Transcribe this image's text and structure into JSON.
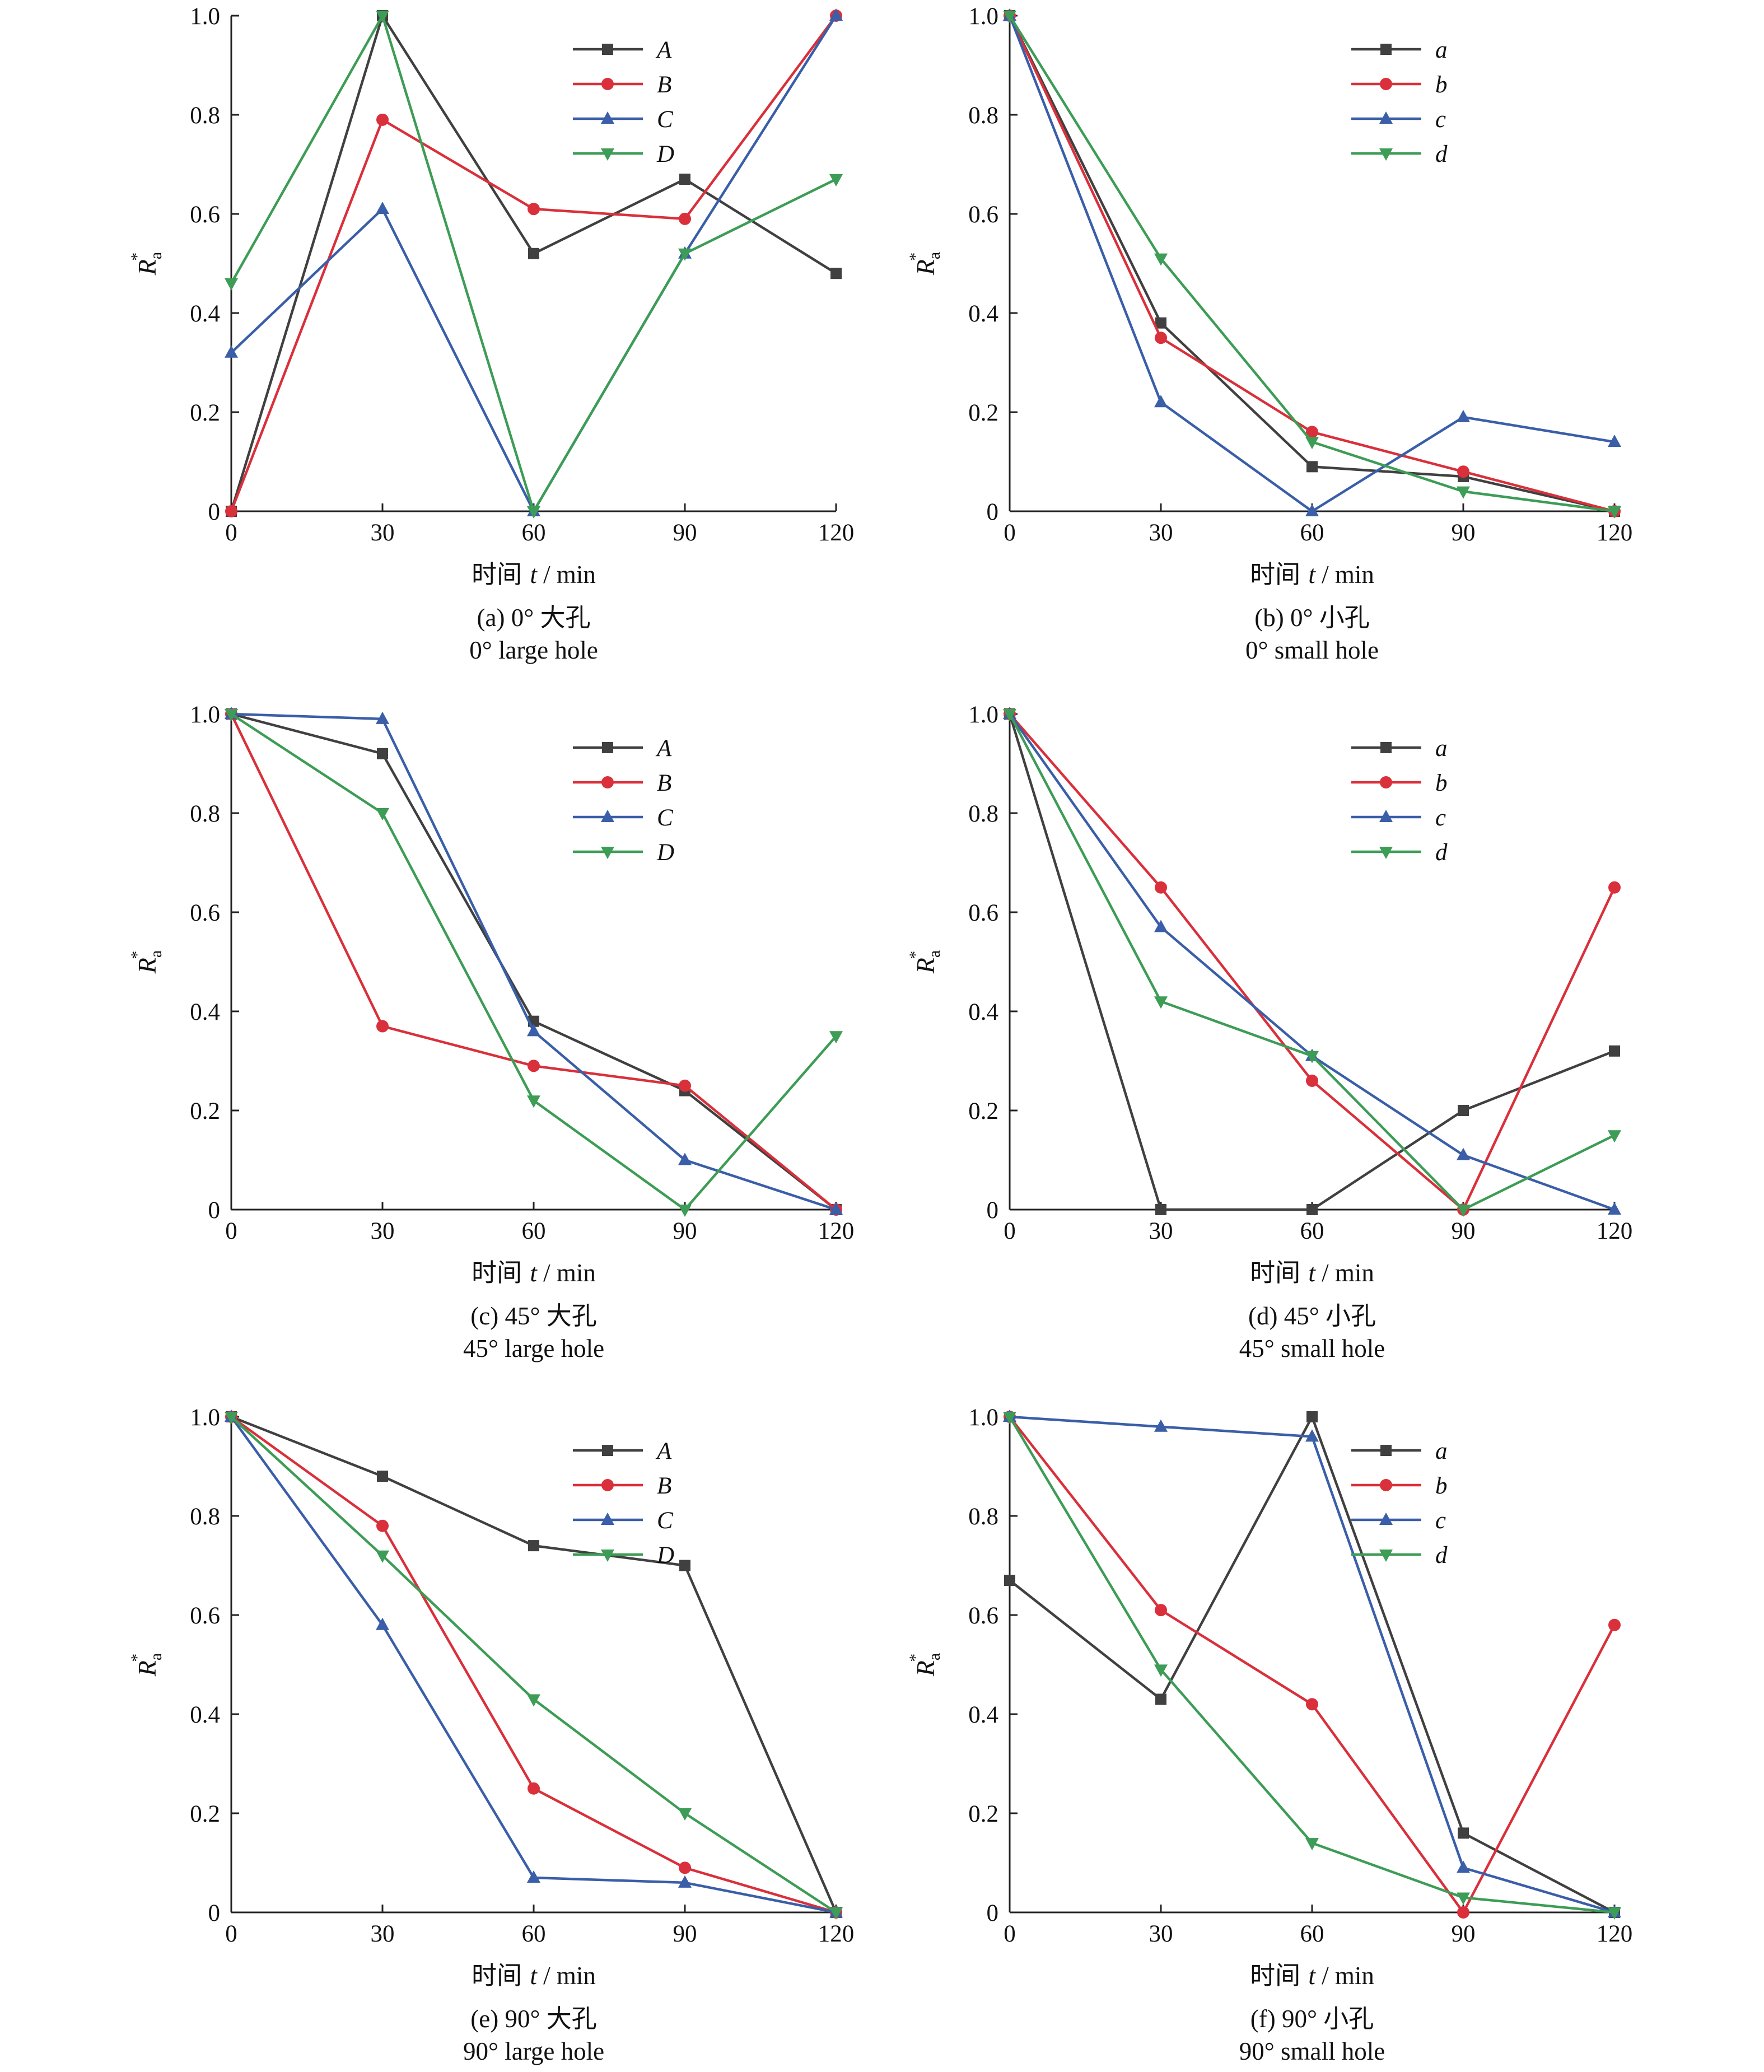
{
  "figure": {
    "colors": {
      "s0": "#404040",
      "s1": "#d9303b",
      "s2": "#3a5ea8",
      "s3": "#3d9c55"
    },
    "markers": [
      "square",
      "circle",
      "triangle-up",
      "triangle-down"
    ]
  },
  "chart_data": [
    {
      "type": "line",
      "panel": "a",
      "caption_cn": "(a) 0° 大孔",
      "caption_en": "0° large hole",
      "xlabel_cn": "时间 ",
      "xlabel_var": "t",
      "xlabel_unit": " / min",
      "ylabel_main": "R",
      "ylabel_sub": "a",
      "ylabel_sup": "*",
      "x": [
        0,
        30,
        60,
        90,
        120
      ],
      "xticks": [
        "0",
        "30",
        "60",
        "90",
        "120"
      ],
      "yticks": [
        "0",
        "0.2",
        "0.4",
        "0.6",
        "0.8",
        "1.0"
      ],
      "xlim": [
        0,
        120
      ],
      "ylim": [
        0,
        1
      ],
      "legend_position": "top-right",
      "series": [
        {
          "name": "A",
          "values": [
            0,
            1.0,
            0.52,
            0.67,
            0.48
          ]
        },
        {
          "name": "B",
          "values": [
            0,
            0.79,
            0.61,
            0.59,
            1.0
          ]
        },
        {
          "name": "C",
          "values": [
            0.32,
            0.61,
            0,
            0.52,
            1.0
          ]
        },
        {
          "name": "D",
          "values": [
            0.46,
            1.0,
            0,
            0.52,
            0.67
          ]
        }
      ]
    },
    {
      "type": "line",
      "panel": "b",
      "caption_cn": "(b) 0° 小孔",
      "caption_en": "0° small hole",
      "xlabel_cn": "时间 ",
      "xlabel_var": "t",
      "xlabel_unit": " / min",
      "ylabel_main": "R",
      "ylabel_sub": "a",
      "ylabel_sup": "*",
      "x": [
        0,
        30,
        60,
        90,
        120
      ],
      "xticks": [
        "0",
        "30",
        "60",
        "90",
        "120"
      ],
      "yticks": [
        "0",
        "0.2",
        "0.4",
        "0.6",
        "0.8",
        "1.0"
      ],
      "xlim": [
        0,
        120
      ],
      "ylim": [
        0,
        1
      ],
      "legend_position": "top-right",
      "series": [
        {
          "name": "a",
          "values": [
            1.0,
            0.38,
            0.09,
            0.07,
            0
          ]
        },
        {
          "name": "b",
          "values": [
            1.0,
            0.35,
            0.16,
            0.08,
            0
          ]
        },
        {
          "name": "c",
          "values": [
            1.0,
            0.22,
            0,
            0.19,
            0.14
          ]
        },
        {
          "name": "d",
          "values": [
            1.0,
            0.51,
            0.14,
            0.04,
            0
          ]
        }
      ]
    },
    {
      "type": "line",
      "panel": "c",
      "caption_cn": "(c) 45° 大孔",
      "caption_en": "45° large hole",
      "xlabel_cn": "时间 ",
      "xlabel_var": "t",
      "xlabel_unit": " / min",
      "ylabel_main": "R",
      "ylabel_sub": "a",
      "ylabel_sup": "*",
      "x": [
        0,
        30,
        60,
        90,
        120
      ],
      "xticks": [
        "0",
        "30",
        "60",
        "90",
        "120"
      ],
      "yticks": [
        "0",
        "0.2",
        "0.4",
        "0.6",
        "0.8",
        "1.0"
      ],
      "xlim": [
        0,
        120
      ],
      "ylim": [
        0,
        1
      ],
      "legend_position": "top-right",
      "series": [
        {
          "name": "A",
          "values": [
            1.0,
            0.92,
            0.38,
            0.24,
            0
          ]
        },
        {
          "name": "B",
          "values": [
            1.0,
            0.37,
            0.29,
            0.25,
            0
          ]
        },
        {
          "name": "C",
          "values": [
            1.0,
            0.99,
            0.36,
            0.1,
            0
          ]
        },
        {
          "name": "D",
          "values": [
            1.0,
            0.8,
            0.22,
            0,
            0.35
          ]
        }
      ]
    },
    {
      "type": "line",
      "panel": "d",
      "caption_cn": "(d) 45° 小孔",
      "caption_en": "45° small hole",
      "xlabel_cn": "时间 ",
      "xlabel_var": "t",
      "xlabel_unit": " / min",
      "ylabel_main": "R",
      "ylabel_sub": "a",
      "ylabel_sup": "*",
      "x": [
        0,
        30,
        60,
        90,
        120
      ],
      "xticks": [
        "0",
        "30",
        "60",
        "90",
        "120"
      ],
      "yticks": [
        "0",
        "0.2",
        "0.4",
        "0.6",
        "0.8",
        "1.0"
      ],
      "xlim": [
        0,
        120
      ],
      "ylim": [
        0,
        1
      ],
      "legend_position": "top-right",
      "series": [
        {
          "name": "a",
          "values": [
            1.0,
            0,
            0,
            0.2,
            0.32
          ]
        },
        {
          "name": "b",
          "values": [
            1.0,
            0.65,
            0.26,
            0,
            0.65
          ]
        },
        {
          "name": "c",
          "values": [
            1.0,
            0.57,
            0.31,
            0.11,
            0
          ]
        },
        {
          "name": "d",
          "values": [
            1.0,
            0.42,
            0.31,
            0,
            0.15
          ]
        }
      ]
    },
    {
      "type": "line",
      "panel": "e",
      "caption_cn": "(e) 90° 大孔",
      "caption_en": "90° large hole",
      "xlabel_cn": "时间 ",
      "xlabel_var": "t",
      "xlabel_unit": " / min",
      "ylabel_main": "R",
      "ylabel_sub": "a",
      "ylabel_sup": "*",
      "x": [
        0,
        30,
        60,
        90,
        120
      ],
      "xticks": [
        "0",
        "30",
        "60",
        "90",
        "120"
      ],
      "yticks": [
        "0",
        "0.2",
        "0.4",
        "0.6",
        "0.8",
        "1.0"
      ],
      "xlim": [
        0,
        120
      ],
      "ylim": [
        0,
        1
      ],
      "legend_position": "top-right",
      "series": [
        {
          "name": "A",
          "values": [
            1.0,
            0.88,
            0.74,
            0.7,
            0
          ]
        },
        {
          "name": "B",
          "values": [
            1.0,
            0.78,
            0.25,
            0.09,
            0
          ]
        },
        {
          "name": "C",
          "values": [
            1.0,
            0.58,
            0.07,
            0.06,
            0
          ]
        },
        {
          "name": "D",
          "values": [
            1.0,
            0.72,
            0.43,
            0.2,
            0
          ]
        }
      ]
    },
    {
      "type": "line",
      "panel": "f",
      "caption_cn": "(f) 90° 小孔",
      "caption_en": "90° small hole",
      "xlabel_cn": "时间 ",
      "xlabel_var": "t",
      "xlabel_unit": " / min",
      "ylabel_main": "R",
      "ylabel_sub": "a",
      "ylabel_sup": "*",
      "x": [
        0,
        30,
        60,
        90,
        120
      ],
      "xticks": [
        "0",
        "30",
        "60",
        "90",
        "120"
      ],
      "yticks": [
        "0",
        "0.2",
        "0.4",
        "0.6",
        "0.8",
        "1.0"
      ],
      "xlim": [
        0,
        120
      ],
      "ylim": [
        0,
        1
      ],
      "legend_position": "top-right",
      "series": [
        {
          "name": "a",
          "values": [
            0.67,
            0.43,
            1.0,
            0.16,
            0
          ]
        },
        {
          "name": "b",
          "values": [
            1.0,
            0.61,
            0.42,
            0,
            0.58
          ]
        },
        {
          "name": "c",
          "values": [
            1.0,
            0.98,
            0.96,
            0.09,
            0
          ]
        },
        {
          "name": "d",
          "values": [
            1.0,
            0.49,
            0.14,
            0.03,
            0
          ]
        }
      ]
    }
  ]
}
